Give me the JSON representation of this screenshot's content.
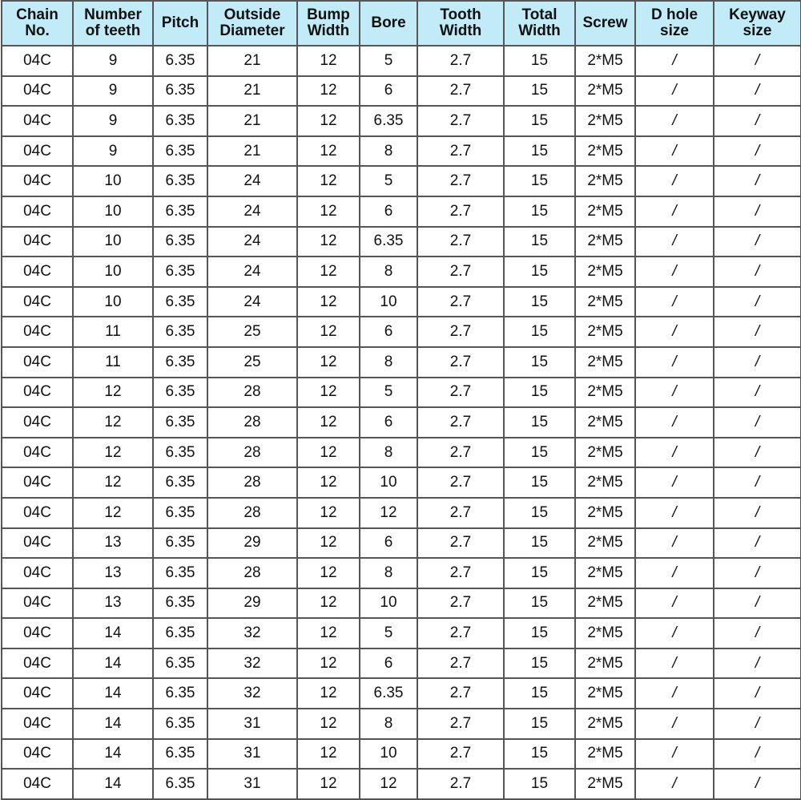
{
  "table": {
    "headers": [
      [
        "Chain",
        "No."
      ],
      [
        "Number",
        "of teeth"
      ],
      [
        "Pitch",
        ""
      ],
      [
        "Outside",
        "Diameter"
      ],
      [
        "Bump",
        "Width"
      ],
      [
        "Bore",
        ""
      ],
      [
        "Tooth",
        "Width"
      ],
      [
        "Total",
        "Width"
      ],
      [
        "Screw",
        ""
      ],
      [
        "D hole",
        "size"
      ],
      [
        "Keyway",
        "size"
      ]
    ],
    "rows": [
      [
        "04C",
        "9",
        "6.35",
        "21",
        "12",
        "5",
        "2.7",
        "15",
        "2*M5",
        "/",
        "/"
      ],
      [
        "04C",
        "9",
        "6.35",
        "21",
        "12",
        "6",
        "2.7",
        "15",
        "2*M5",
        "/",
        "/"
      ],
      [
        "04C",
        "9",
        "6.35",
        "21",
        "12",
        "6.35",
        "2.7",
        "15",
        "2*M5",
        "/",
        "/"
      ],
      [
        "04C",
        "9",
        "6.35",
        "21",
        "12",
        "8",
        "2.7",
        "15",
        "2*M5",
        "/",
        "/"
      ],
      [
        "04C",
        "10",
        "6.35",
        "24",
        "12",
        "5",
        "2.7",
        "15",
        "2*M5",
        "/",
        "/"
      ],
      [
        "04C",
        "10",
        "6.35",
        "24",
        "12",
        "6",
        "2.7",
        "15",
        "2*M5",
        "/",
        "/"
      ],
      [
        "04C",
        "10",
        "6.35",
        "24",
        "12",
        "6.35",
        "2.7",
        "15",
        "2*M5",
        "/",
        "/"
      ],
      [
        "04C",
        "10",
        "6.35",
        "24",
        "12",
        "8",
        "2.7",
        "15",
        "2*M5",
        "/",
        "/"
      ],
      [
        "04C",
        "10",
        "6.35",
        "24",
        "12",
        "10",
        "2.7",
        "15",
        "2*M5",
        "/",
        "/"
      ],
      [
        "04C",
        "11",
        "6.35",
        "25",
        "12",
        "6",
        "2.7",
        "15",
        "2*M5",
        "/",
        "/"
      ],
      [
        "04C",
        "11",
        "6.35",
        "25",
        "12",
        "8",
        "2.7",
        "15",
        "2*M5",
        "/",
        "/"
      ],
      [
        "04C",
        "12",
        "6.35",
        "28",
        "12",
        "5",
        "2.7",
        "15",
        "2*M5",
        "/",
        "/"
      ],
      [
        "04C",
        "12",
        "6.35",
        "28",
        "12",
        "6",
        "2.7",
        "15",
        "2*M5",
        "/",
        "/"
      ],
      [
        "04C",
        "12",
        "6.35",
        "28",
        "12",
        "8",
        "2.7",
        "15",
        "2*M5",
        "/",
        "/"
      ],
      [
        "04C",
        "12",
        "6.35",
        "28",
        "12",
        "10",
        "2.7",
        "15",
        "2*M5",
        "/",
        "/"
      ],
      [
        "04C",
        "12",
        "6.35",
        "28",
        "12",
        "12",
        "2.7",
        "15",
        "2*M5",
        "/",
        "/"
      ],
      [
        "04C",
        "13",
        "6.35",
        "29",
        "12",
        "6",
        "2.7",
        "15",
        "2*M5",
        "/",
        "/"
      ],
      [
        "04C",
        "13",
        "6.35",
        "28",
        "12",
        "8",
        "2.7",
        "15",
        "2*M5",
        "/",
        "/"
      ],
      [
        "04C",
        "13",
        "6.35",
        "29",
        "12",
        "10",
        "2.7",
        "15",
        "2*M5",
        "/",
        "/"
      ],
      [
        "04C",
        "14",
        "6.35",
        "32",
        "12",
        "5",
        "2.7",
        "15",
        "2*M5",
        "/",
        "/"
      ],
      [
        "04C",
        "14",
        "6.35",
        "32",
        "12",
        "6",
        "2.7",
        "15",
        "2*M5",
        "/",
        "/"
      ],
      [
        "04C",
        "14",
        "6.35",
        "32",
        "12",
        "6.35",
        "2.7",
        "15",
        "2*M5",
        "/",
        "/"
      ],
      [
        "04C",
        "14",
        "6.35",
        "31",
        "12",
        "8",
        "2.7",
        "15",
        "2*M5",
        "/",
        "/"
      ],
      [
        "04C",
        "14",
        "6.35",
        "31",
        "12",
        "10",
        "2.7",
        "15",
        "2*M5",
        "/",
        "/"
      ],
      [
        "04C",
        "14",
        "6.35",
        "31",
        "12",
        "12",
        "2.7",
        "15",
        "2*M5",
        "/",
        "/"
      ]
    ]
  },
  "colors": {
    "header_bg": "#c2ebf8",
    "border": "#555555"
  }
}
